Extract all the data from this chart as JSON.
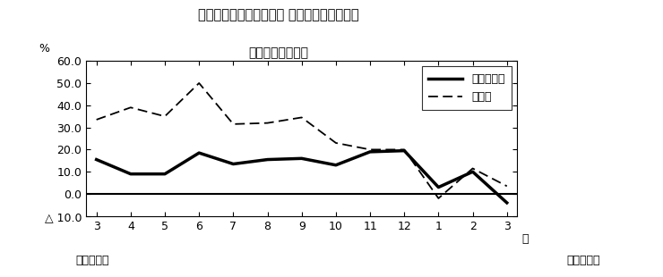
{
  "title_line1": "第２図　所定外労働時間 対前年同月比の推移",
  "title_line2": "（規模５人以上）",
  "x_labels": [
    "3",
    "4",
    "5",
    "6",
    "7",
    "8",
    "9",
    "10",
    "11",
    "12",
    "1",
    "2",
    "3"
  ],
  "xlabel_bottom1": "平成２２年",
  "xlabel_bottom2": "平成２３年",
  "xlabel_right": "月",
  "ylabel_pct": "%",
  "legend_label1": "調査産業計",
  "legend_label2": "製造業",
  "series1": [
    15.5,
    9.0,
    9.0,
    18.5,
    13.5,
    15.5,
    16.0,
    13.0,
    19.0,
    19.5,
    3.0,
    10.0,
    -4.0
  ],
  "series2": [
    33.5,
    39.0,
    35.0,
    50.0,
    31.5,
    32.0,
    34.5,
    23.0,
    20.0,
    20.0,
    -2.0,
    11.5,
    3.5
  ],
  "ylim_min": -10.0,
  "ylim_max": 60.0,
  "yticks": [
    -10.0,
    0.0,
    10.0,
    20.0,
    30.0,
    40.0,
    50.0,
    60.0
  ],
  "background_color": "#ffffff",
  "line1_color": "#000000",
  "line2_color": "#000000"
}
